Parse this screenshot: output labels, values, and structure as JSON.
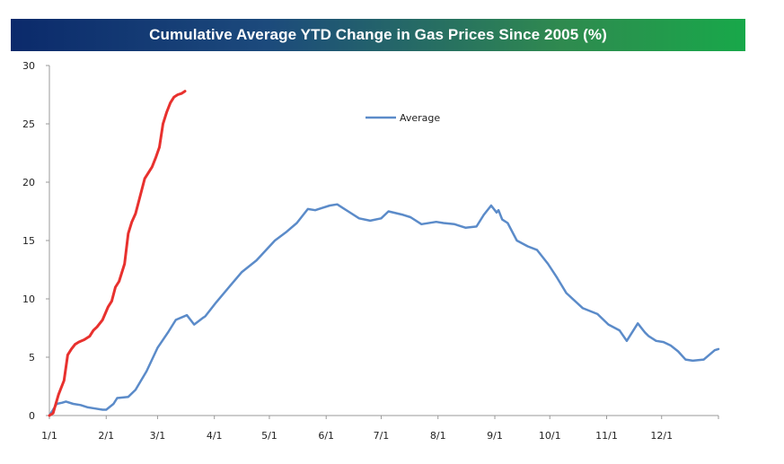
{
  "chart_data": {
    "type": "line",
    "title": "Cumulative Average YTD Change in Gas Prices Since 2005 (%)",
    "xlabel": "",
    "ylabel": "",
    "x_tick_labels": [
      "1/1",
      "2/1",
      "3/1",
      "4/1",
      "5/1",
      "6/1",
      "7/1",
      "8/1",
      "9/1",
      "10/1",
      "11/1",
      "12/1"
    ],
    "y_ticks": [
      0,
      5,
      10,
      15,
      20,
      25,
      30
    ],
    "ylim": [
      0,
      30
    ],
    "xlim_day_of_year": [
      1,
      366
    ],
    "grid": false,
    "legend_position": "top-center",
    "series": [
      {
        "name": "Average",
        "color": "#5b8bc9",
        "x_day_of_year": [
          1,
          5,
          8,
          10,
          14,
          18,
          22,
          26,
          30,
          32,
          36,
          38,
          44,
          48,
          54,
          60,
          66,
          70,
          76,
          80,
          85,
          86,
          92,
          100,
          106,
          114,
          124,
          130,
          136,
          142,
          146,
          150,
          154,
          158,
          164,
          170,
          176,
          182,
          186,
          194,
          198,
          204,
          212,
          216,
          222,
          228,
          234,
          238,
          242,
          245,
          246,
          248,
          251,
          256,
          262,
          267,
          273,
          278,
          283,
          292,
          300,
          306,
          312,
          316,
          322,
          325,
          326,
          328,
          332,
          336,
          340,
          344,
          348,
          352,
          358,
          364,
          366
        ],
        "values": [
          0,
          1.0,
          1.1,
          1.2,
          1.0,
          0.9,
          0.7,
          0.6,
          0.5,
          0.5,
          1.0,
          1.5,
          1.6,
          2.2,
          3.8,
          5.8,
          7.2,
          8.2,
          8.6,
          7.8,
          8.4,
          8.5,
          9.7,
          11.2,
          12.3,
          13.3,
          15.0,
          15.7,
          16.5,
          17.7,
          17.6,
          17.8,
          18.0,
          18.1,
          17.5,
          16.9,
          16.7,
          16.9,
          17.5,
          17.2,
          17.0,
          16.4,
          16.6,
          16.5,
          16.4,
          16.1,
          16.2,
          17.2,
          18.0,
          17.4,
          17.6,
          16.8,
          16.5,
          15.0,
          14.5,
          14.2,
          13.0,
          11.8,
          10.5,
          9.2,
          8.7,
          7.8,
          7.3,
          6.4,
          7.9,
          7.3,
          7.1,
          6.8,
          6.4,
          6.3,
          6.0,
          5.5,
          4.8,
          4.7,
          4.8,
          5.6,
          5.7
        ]
      },
      {
        "name": "",
        "color": "#e8312e",
        "x_day_of_year": [
          1,
          3,
          6,
          7,
          9,
          11,
          13,
          15,
          17,
          20,
          23,
          25,
          27,
          30,
          33,
          35,
          37,
          39,
          42,
          44,
          46,
          48,
          50,
          53,
          55,
          57,
          59,
          61,
          63,
          65,
          67,
          69,
          71,
          73,
          75
        ],
        "values": [
          0,
          0.2,
          1.8,
          2.2,
          3.0,
          5.2,
          5.7,
          6.1,
          6.3,
          6.5,
          6.8,
          7.3,
          7.6,
          8.2,
          9.3,
          9.8,
          11.0,
          11.5,
          13.0,
          15.6,
          16.6,
          17.3,
          18.5,
          20.3,
          20.8,
          21.3,
          22.1,
          23.0,
          25.0,
          26.0,
          26.8,
          27.3,
          27.5,
          27.6,
          27.8
        ]
      }
    ]
  }
}
